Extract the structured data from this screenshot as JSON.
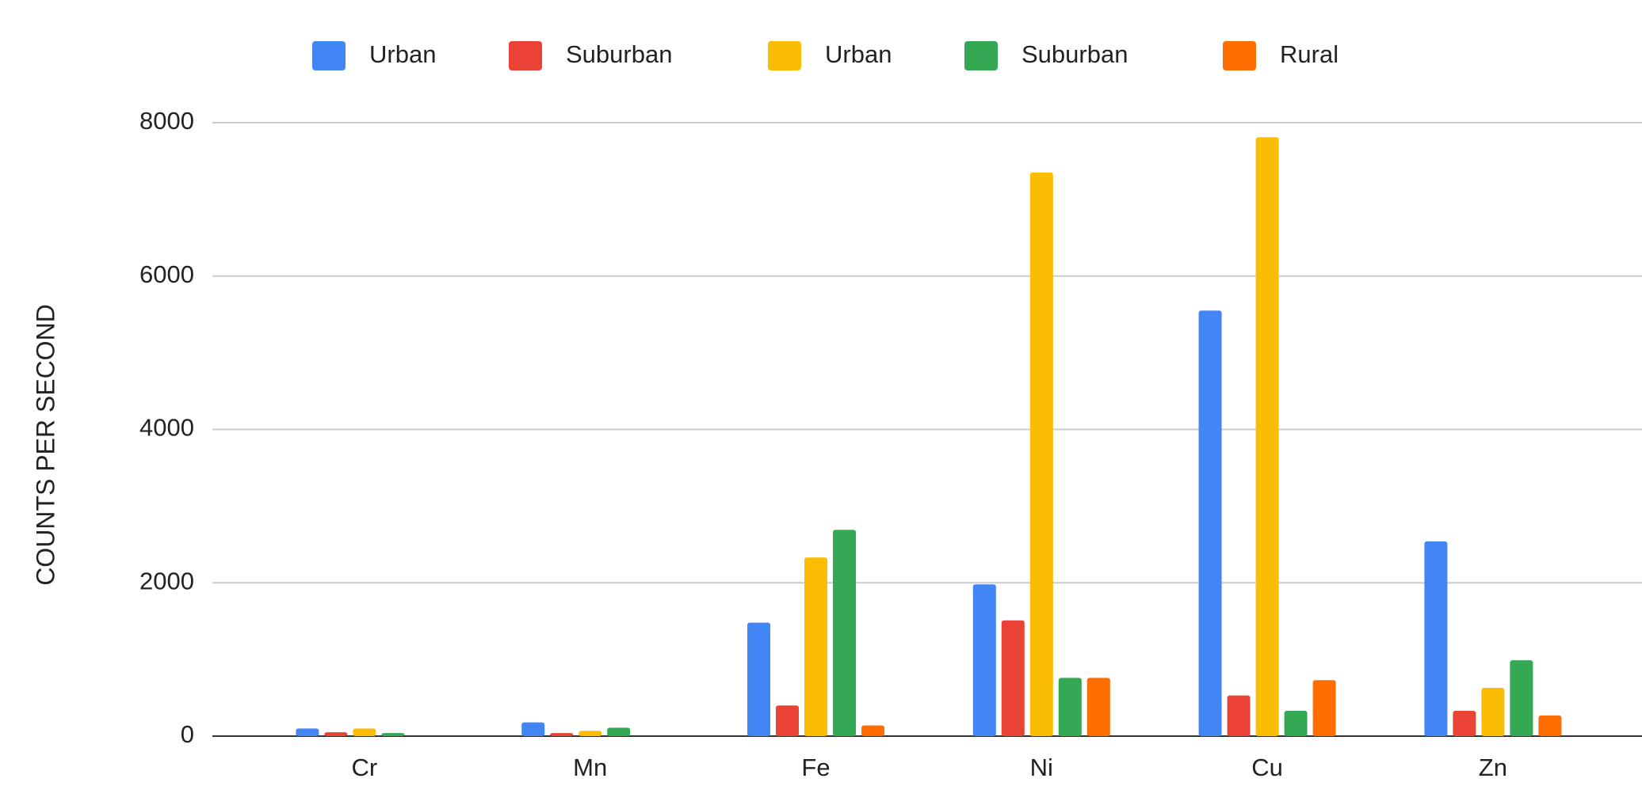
{
  "chart_data": {
    "type": "bar",
    "y_label": "COUNTS PER SECOND",
    "categories": [
      "Cr",
      "Mn",
      "Fe",
      "Ni",
      "Cu",
      "Zn"
    ],
    "series": [
      {
        "name": "Urban",
        "color": "#4285f4",
        "values": [
          100,
          180,
          1480,
          1980,
          5550,
          2540
        ]
      },
      {
        "name": "Suburban",
        "color": "#ea4335",
        "values": [
          50,
          40,
          400,
          1510,
          530,
          330
        ]
      },
      {
        "name": "Urban",
        "color": "#fbbc04",
        "values": [
          100,
          70,
          2330,
          7350,
          7810,
          630
        ]
      },
      {
        "name": "Suburban",
        "color": "#34a853",
        "values": [
          40,
          110,
          2690,
          760,
          330,
          990
        ]
      },
      {
        "name": "Rural",
        "color": "#ff6d01",
        "values": [
          0,
          0,
          140,
          760,
          730,
          270
        ]
      }
    ],
    "ylim": [
      0,
      8000
    ],
    "yticks": [
      0,
      2000,
      4000,
      6000,
      8000
    ],
    "grid": true,
    "legend": "top"
  }
}
